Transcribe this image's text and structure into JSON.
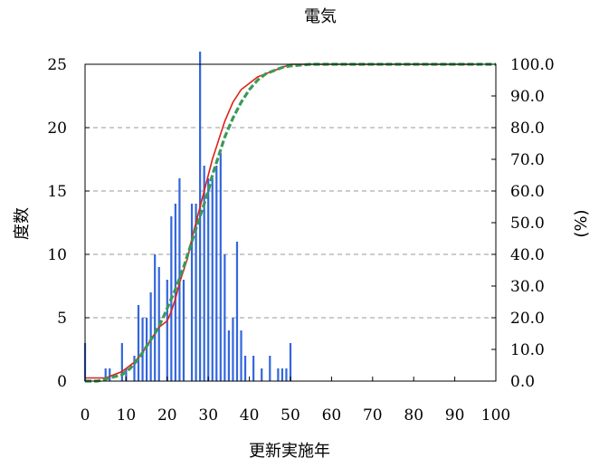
{
  "chart_data": {
    "type": "bar",
    "title": "電気",
    "xlabel": "更新実施年",
    "ylabel": "度数",
    "y2label": "(%)",
    "xlim": [
      0,
      100
    ],
    "ylim": [
      0,
      25
    ],
    "y2lim": [
      0,
      100
    ],
    "xticks": [
      "0",
      "10",
      "20",
      "30",
      "40",
      "50",
      "60",
      "70",
      "80",
      "90",
      "100"
    ],
    "yticks": [
      "0",
      "5",
      "10",
      "15",
      "20",
      "25"
    ],
    "y2ticks": [
      "0.0",
      "10.0",
      "20.0",
      "30.0",
      "40.0",
      "50.0",
      "60.0",
      "70.0",
      "80.0",
      "90.0",
      "100.0"
    ],
    "grid": "horizontal dashed",
    "colors": {
      "bars": "#3366dd",
      "red_line": "#e0201b",
      "green_line": "#3a9a55"
    },
    "series": [
      {
        "type": "bar",
        "x": [
          0,
          1,
          2,
          3,
          4,
          5,
          6,
          7,
          8,
          9,
          10,
          11,
          12,
          13,
          14,
          15,
          16,
          17,
          18,
          19,
          20,
          21,
          22,
          23,
          24,
          25,
          26,
          27,
          28,
          29,
          30,
          31,
          32,
          33,
          34,
          35,
          36,
          37,
          38,
          39,
          40,
          41,
          42,
          43,
          44,
          45,
          46,
          47,
          48,
          49,
          50
        ],
        "values": [
          3,
          0,
          0,
          0,
          0,
          1,
          1,
          0,
          0,
          3,
          1,
          0,
          2,
          6,
          5,
          5,
          7,
          10,
          9,
          0,
          8,
          13,
          14,
          16,
          8,
          0,
          14,
          14,
          26,
          17,
          16,
          16,
          17,
          18,
          10,
          4,
          5,
          11,
          4,
          2,
          0,
          2,
          0,
          1,
          0,
          2,
          0,
          1,
          1,
          1,
          3
        ]
      },
      {
        "type": "line",
        "x": [
          0,
          5,
          7,
          9,
          10,
          12,
          14,
          16,
          17,
          18,
          19,
          20,
          21,
          22,
          23,
          24,
          25,
          26,
          27,
          28,
          29,
          30,
          31,
          32,
          33,
          34,
          36,
          38,
          40,
          42,
          44,
          46,
          48,
          50,
          60,
          70,
          80,
          90,
          95
        ],
        "values": [
          1,
          1,
          2,
          3,
          4,
          6,
          9,
          13,
          15,
          17,
          18,
          19,
          22,
          26,
          31,
          35,
          39,
          45,
          50,
          55,
          60,
          65,
          70,
          74,
          78,
          82,
          88,
          92,
          94,
          96,
          97,
          98,
          99,
          100,
          100,
          100,
          100,
          100,
          100
        ]
      },
      {
        "type": "line",
        "x": [
          0,
          3,
          6,
          9,
          11,
          13,
          15,
          17,
          19,
          20,
          22,
          24,
          26,
          28,
          29,
          30,
          31,
          32,
          33,
          34,
          35,
          36,
          38,
          40,
          42,
          44,
          46,
          48,
          50,
          55,
          60,
          70,
          80,
          90,
          100
        ],
        "values": [
          0,
          0,
          1,
          2,
          4,
          7,
          11,
          15,
          20,
          23,
          29,
          36,
          44,
          52,
          56,
          60,
          65,
          69,
          73,
          77,
          80,
          83,
          88,
          92,
          95,
          97,
          98,
          99,
          99.5,
          100,
          100,
          100,
          100,
          100,
          100
        ]
      }
    ]
  }
}
